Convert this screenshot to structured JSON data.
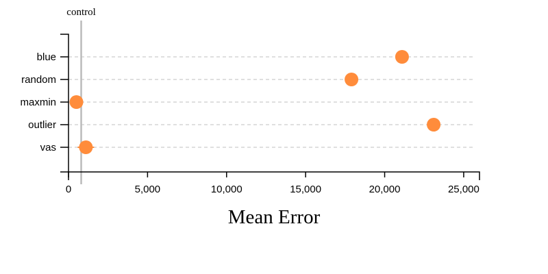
{
  "chart_data": {
    "type": "scatter",
    "orientation": "horizontal",
    "categories": [
      "blue",
      "random",
      "maxmin",
      "outlier",
      "vas"
    ],
    "values": [
      21100,
      17900,
      500,
      23100,
      1100
    ],
    "xlabel": "Mean Error",
    "xlim": [
      0,
      26000
    ],
    "xticks": [
      0,
      5000,
      10000,
      15000,
      20000,
      25000
    ],
    "xtick_labels": [
      "0",
      "5,000",
      "10,000",
      "15,000",
      "20,000",
      "25,000"
    ],
    "reference_line": {
      "label": "control",
      "value": 500
    },
    "grid": "horizontal dashed",
    "colors": {
      "point": "#ff8c3b",
      "reference": "#bbbbbb",
      "grid": "#cccccc"
    }
  }
}
